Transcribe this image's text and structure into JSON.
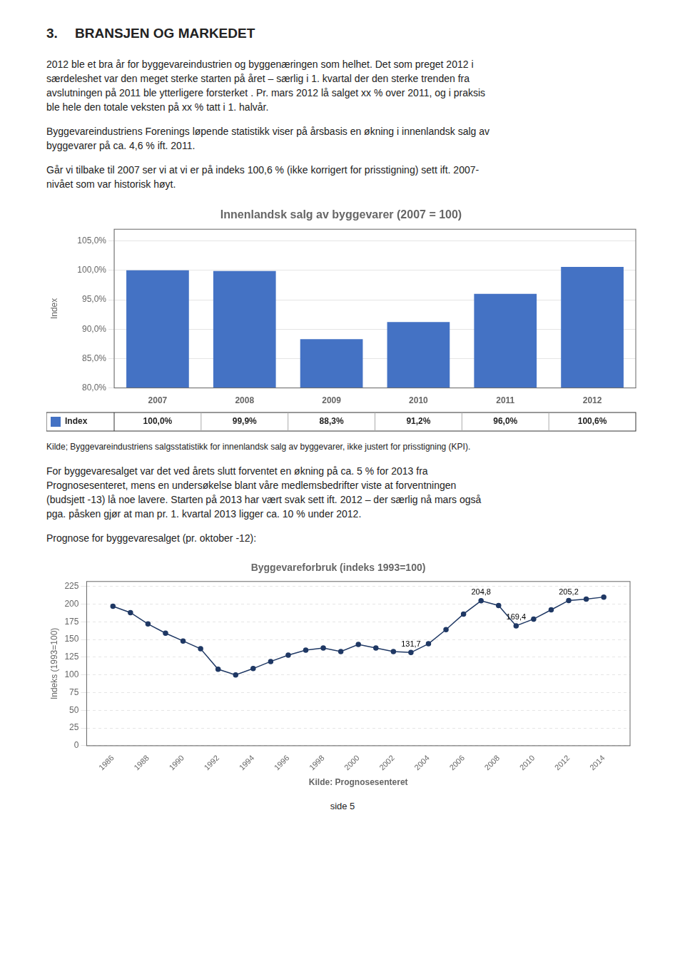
{
  "heading_number": "3.",
  "heading_text": "BRANSJEN OG MARKEDET",
  "intro_paragraphs": [
    "2012 ble et bra år for byggevareindustrien og byggenæringen som helhet. Det som preget 2012 i\nsærdeleshet var den meget sterke starten på året – særlig i 1. kvartal der den sterke trenden fra\navslutningen på 2011 ble ytterligere forsterket . Pr. mars 2012 lå salget xx % over 2011, og i praksis\nble hele den totale veksten på xx % tatt i 1. halvår.",
    "Byggevareindustriens Forenings løpende statistikk viser på årsbasis en økning i innenlandsk salg av\nbyggevarer på ca. 4,6 % ift. 2011.",
    "Går vi tilbake til 2007 ser vi at vi er på indeks 100,6 % (ikke korrigert for prisstigning) sett ift. 2007-\nnivået som var historisk høyt."
  ],
  "source": "Kilde; Byggevareindustriens salgsstatistikk for innenlandsk salg av byggevarer, ikke justert for prisstigning (KPI).",
  "middle_paragraphs": [
    "For byggevaresalget var det ved årets slutt forventet en økning på ca. 5 % for 2013 fra\nPrognosesenteret, mens en undersøkelse blant våre medlemsbedrifter viste at forventningen\n(budsjett -13) lå noe lavere. Starten på 2013 har vært svak sett ift. 2012 – der særlig nå mars også\npga. påsken gjør at man pr. 1. kvartal 2013 ligger ca. 10 % under 2012.",
    "Prognose for byggevaresalget (pr. oktober -12):"
  ],
  "footer": "side 5",
  "chart_data": [
    {
      "type": "bar",
      "title": "Innenlandsk salg av byggevarer (2007 = 100)",
      "categories": [
        "2007",
        "2008",
        "2009",
        "2010",
        "2011",
        "2012"
      ],
      "series": [
        {
          "name": "Index",
          "color": "#4472C4",
          "values": [
            100.0,
            99.9,
            88.3,
            91.2,
            96.0,
            100.6
          ],
          "value_labels": [
            "100,0%",
            "99,9%",
            "88,3%",
            "91,2%",
            "96,0%",
            "100,6%"
          ]
        }
      ],
      "ylabel": "Index",
      "ylim": [
        80.0,
        107.0
      ],
      "yticks": [
        {
          "value": 80.0,
          "label": "80,0%"
        },
        {
          "value": 85.0,
          "label": "85,0%"
        },
        {
          "value": 90.0,
          "label": "90,0%"
        },
        {
          "value": 95.0,
          "label": "95,0%"
        },
        {
          "value": 100.0,
          "label": "100,0%"
        },
        {
          "value": 105.0,
          "label": "105,0%"
        }
      ],
      "grid": "y",
      "legend": "bottom",
      "data_labels": true
    },
    {
      "type": "line",
      "title": "Byggevareforbruk (indeks 1993=100)",
      "xlabel": "Kilde: Prognosesenteret",
      "ylabel": "Indeks (1993=100)",
      "x": [
        1986,
        1987,
        1988,
        1989,
        1990,
        1991,
        1992,
        1993,
        1994,
        1995,
        1996,
        1997,
        1998,
        1999,
        2000,
        2001,
        2002,
        2003,
        2004,
        2005,
        2006,
        2007,
        2008,
        2009,
        2010,
        2011,
        2012,
        2013,
        2014
      ],
      "values": [
        197,
        188,
        172,
        159,
        148,
        137,
        108,
        100,
        109,
        119,
        128,
        135,
        138,
        133,
        143,
        138,
        133,
        131.7,
        144,
        164,
        186,
        204.8,
        198,
        169.4,
        179,
        192,
        205.2,
        207,
        210
      ],
      "color": "#1F3864",
      "marker": "circle",
      "xlim": [
        1984.5,
        2015.5
      ],
      "xticks": [
        1986,
        1988,
        1990,
        1992,
        1994,
        1996,
        1998,
        2000,
        2002,
        2004,
        2006,
        2008,
        2010,
        2012,
        2014
      ],
      "ylim": [
        0,
        232
      ],
      "yticks": [
        0,
        25,
        50,
        75,
        100,
        125,
        150,
        175,
        200,
        225
      ],
      "grid": "y",
      "annotations": [
        {
          "x": 2003,
          "y": 131.7,
          "text": "131,7"
        },
        {
          "x": 2007,
          "y": 204.8,
          "text": "204,8"
        },
        {
          "x": 2009,
          "y": 169.4,
          "text": "169,4"
        },
        {
          "x": 2012,
          "y": 205.2,
          "text": "205,2"
        }
      ]
    }
  ]
}
